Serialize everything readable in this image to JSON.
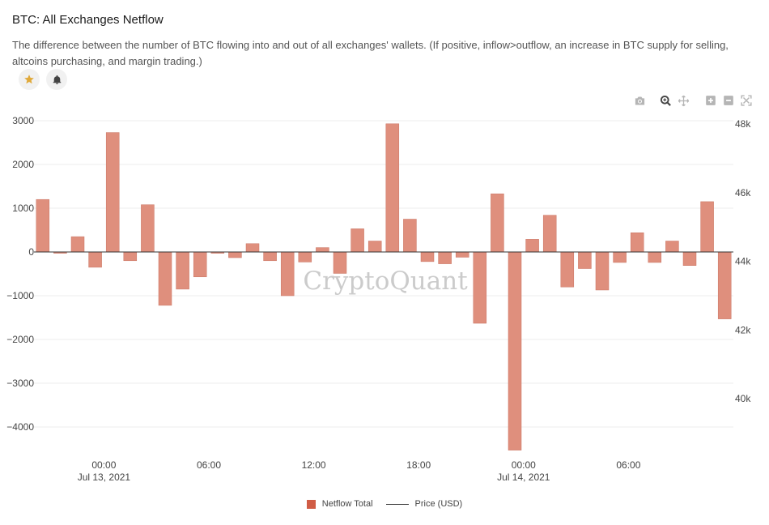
{
  "header": {
    "title": "BTC: All Exchanges Netflow",
    "description": "The difference between the number of BTC flowing into and out of all exchanges' wallets. (If positive, inflow>outflow, an increase in BTC supply for selling, altcoins purchasing, and margin trading.)"
  },
  "watermark": "CryptoQuant",
  "colors": {
    "bar": "#df8f7d",
    "bar_stroke": "#c97563",
    "legend_bar": "#d05c45",
    "star": "#e0a93a"
  },
  "chart_data": {
    "type": "bar",
    "y_left": {
      "range": [
        -4600,
        3100
      ],
      "ticks": [
        3000,
        2000,
        1000,
        0,
        -1000,
        -2000,
        -3000,
        -4000
      ],
      "tick_labels": [
        "3000",
        "2000",
        "1000",
        "0",
        "−1000",
        "−2000",
        "−3000",
        "−4000"
      ]
    },
    "y_right": {
      "ticks": [
        48000,
        46000,
        44000,
        42000,
        40000
      ],
      "tick_labels": [
        "48k",
        "46k",
        "44k",
        "42k",
        "40k"
      ]
    },
    "x_ticks": [
      {
        "label": "00:00",
        "sublabel": "Jul 13, 2021"
      },
      {
        "label": "06:00",
        "sublabel": ""
      },
      {
        "label": "12:00",
        "sublabel": ""
      },
      {
        "label": "18:00",
        "sublabel": ""
      },
      {
        "label": "00:00",
        "sublabel": "Jul 14, 2021"
      },
      {
        "label": "06:00",
        "sublabel": ""
      }
    ],
    "x_tick_hours": [
      24,
      30,
      36,
      42,
      48,
      54
    ],
    "first_bar_hour": 20,
    "series": [
      {
        "name": "Netflow Total",
        "values": [
          1200,
          -30,
          350,
          -350,
          2730,
          -200,
          1080,
          -1220,
          -850,
          -570,
          -30,
          -130,
          190,
          -200,
          -1000,
          -230,
          100,
          -490,
          530,
          250,
          2930,
          750,
          -220,
          -270,
          -120,
          -1630,
          1330,
          -4530,
          290,
          840,
          -800,
          -380,
          -870,
          -240,
          440,
          -240,
          250,
          -310,
          1150,
          -1530
        ]
      },
      {
        "name": "Price (USD)",
        "values": []
      }
    ],
    "legend": [
      {
        "label": "Netflow Total"
      },
      {
        "label": "Price (USD)"
      }
    ]
  },
  "toolbar": {
    "icons": [
      "camera-icon",
      "zoom-icon",
      "pan-icon",
      "zoom-in-icon",
      "zoom-out-icon",
      "autoscale-icon"
    ]
  }
}
